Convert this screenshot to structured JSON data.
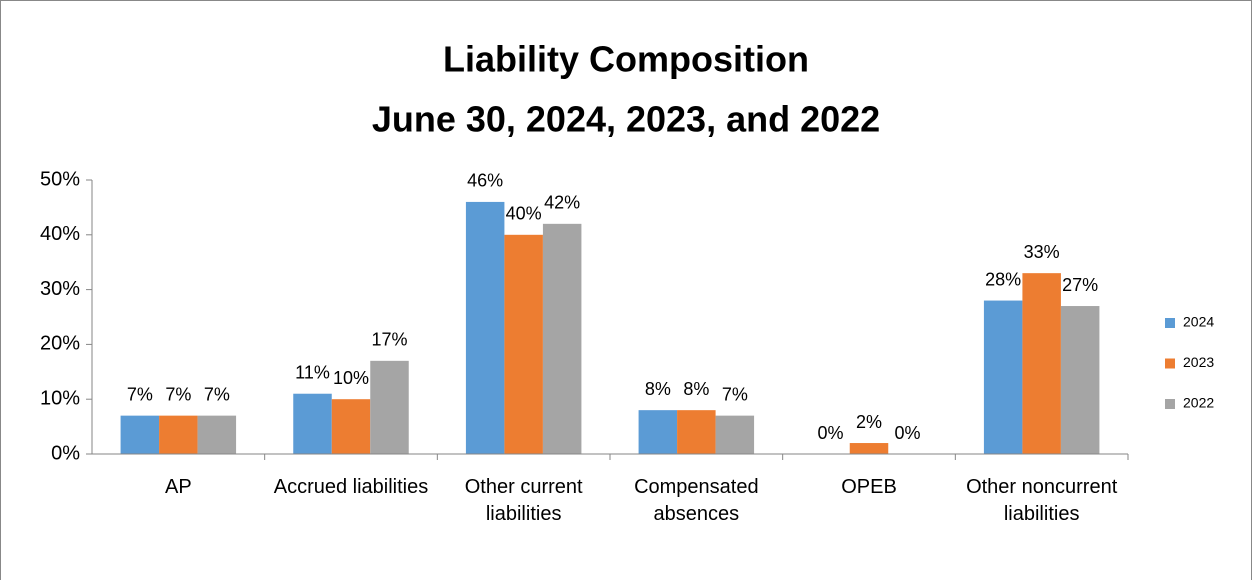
{
  "chart_data": {
    "type": "bar",
    "title": [
      "Liability Composition",
      "June 30, 2024, 2023, and 2022"
    ],
    "categories": [
      "AP",
      "Accrued liabilities",
      "Other current liabilities",
      "Compensated absences",
      "OPEB",
      "Other noncurrent liabilities"
    ],
    "series": [
      {
        "name": "2024",
        "color": "#5b9bd5",
        "values": [
          7,
          11,
          46,
          8,
          0,
          28
        ],
        "value_labels": [
          "7%",
          "11%",
          "46%",
          "8%",
          "0%",
          "28%"
        ]
      },
      {
        "name": "2023",
        "color": "#ed7d31",
        "values": [
          7,
          10,
          40,
          8,
          2,
          33
        ],
        "value_labels": [
          "7%",
          "10%",
          "40%",
          "8%",
          "2%",
          "33%"
        ]
      },
      {
        "name": "2022",
        "color": "#a5a5a5",
        "values": [
          7,
          17,
          42,
          7,
          0,
          27
        ],
        "value_labels": [
          "7%",
          "17%",
          "42%",
          "7%",
          "0%",
          "27%"
        ]
      }
    ],
    "ylim": [
      0,
      50
    ],
    "yticks": [
      {
        "value": 0,
        "label": "0%"
      },
      {
        "value": 10,
        "label": "10%"
      },
      {
        "value": 20,
        "label": "20%"
      },
      {
        "value": 30,
        "label": "30%"
      },
      {
        "value": 40,
        "label": "40%"
      },
      {
        "value": 50,
        "label": "50%"
      }
    ],
    "grid": false,
    "legend": "right"
  }
}
